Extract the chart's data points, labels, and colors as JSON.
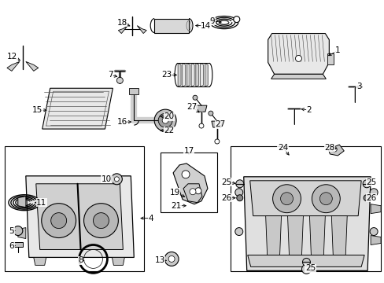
{
  "background_color": "#ffffff",
  "fig_width": 4.89,
  "fig_height": 3.6,
  "dpi": 100,
  "ec": "#000000",
  "lw": 0.7
}
